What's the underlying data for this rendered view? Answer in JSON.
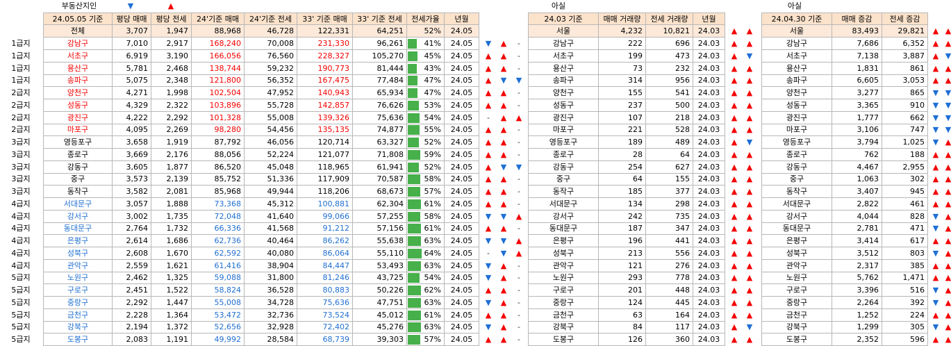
{
  "top_labels": {
    "source": "부동산지인",
    "down_marker": "▼",
    "up_marker": "▲",
    "asil1": "아실",
    "asil2": "아실"
  },
  "colors": {
    "header_bg": "#fbe2cb",
    "total_bg": "#fde9d9",
    "high_price": "#f40000",
    "low_price": "#1f6fd0",
    "bar": "#47b04b",
    "up": "#f40000",
    "down": "#1e6fd6"
  },
  "headers": {
    "left": [
      "24.05.05 기준",
      "평당 매매",
      "평당 전세",
      "24'기준 매매",
      "24'기준 전세",
      "33' 기준 매매",
      "33' 기준 전세",
      "전세가율",
      "년월"
    ],
    "mid": [
      "24.03 기준",
      "매매 거래량",
      "전세 거래량",
      "년월"
    ],
    "right": [
      "24.04.30 기준",
      "매매 증감",
      "전세 증감"
    ]
  },
  "totals": {
    "left": {
      "name": "전체",
      "p_sale": "3,707",
      "p_rent": "1,947",
      "s24": "88,968",
      "r24": "46,728",
      "s33": "122,331",
      "r33": "64,251",
      "ratio": "52%",
      "ym": "24.05"
    },
    "mid": {
      "name": "서울",
      "sale_vol": "4,232",
      "rent_vol": "10,821",
      "ym": "24.03",
      "a1": "up",
      "a2": "up"
    },
    "right": {
      "name": "서울",
      "sale_chg": "83,493",
      "rent_chg": "29,821",
      "a1": "up",
      "a2": "up"
    }
  },
  "rows": [
    {
      "grade": "1급지",
      "name": "강남구",
      "p_sale": "7,010",
      "p_rent": "2,917",
      "s24": "168,240",
      "r24": "70,008",
      "s33": "231,330",
      "r33": "96,261",
      "ratio": "41%",
      "rv": 41,
      "ym": "24.05",
      "cls": "red",
      "a": [
        "down",
        "up",
        "-"
      ],
      "m_name": "강남구",
      "m_sale": "222",
      "m_rent": "696",
      "m_ym": "24.03",
      "ma": [
        "up",
        "up"
      ],
      "r_name": "강남구",
      "r_sale": "7,686",
      "r_rent": "6,352",
      "ra": [
        "up",
        "up"
      ]
    },
    {
      "grade": "1급지",
      "name": "서초구",
      "p_sale": "6,919",
      "p_rent": "3,190",
      "s24": "166,056",
      "r24": "76,560",
      "s33": "228,327",
      "r33": "105,270",
      "ratio": "45%",
      "rv": 45,
      "ym": "24.05",
      "cls": "red",
      "a": [
        "up",
        "up",
        "-"
      ],
      "m_name": "서초구",
      "m_sale": "199",
      "m_rent": "473",
      "m_ym": "24.03",
      "ma": [
        "up",
        "down"
      ],
      "r_name": "서초구",
      "r_sale": "7,138",
      "r_rent": "3,887",
      "ra": [
        "up",
        "down"
      ]
    },
    {
      "grade": "1급지",
      "name": "용산구",
      "p_sale": "5,781",
      "p_rent": "2,468",
      "s24": "138,744",
      "r24": "59,232",
      "s33": "190,773",
      "r33": "81,444",
      "ratio": "43%",
      "rv": 43,
      "ym": "24.05",
      "cls": "red",
      "a": [
        "up",
        "up",
        "-"
      ],
      "m_name": "용산구",
      "m_sale": "73",
      "m_rent": "232",
      "m_ym": "24.03",
      "ma": [
        "up",
        "up"
      ],
      "r_name": "용산구",
      "r_sale": "1,831",
      "r_rent": "861",
      "ra": [
        "up",
        "up"
      ]
    },
    {
      "grade": "1급지",
      "name": "송파구",
      "p_sale": "5,075",
      "p_rent": "2,348",
      "s24": "121,800",
      "r24": "56,352",
      "s33": "167,475",
      "r33": "77,484",
      "ratio": "47%",
      "rv": 47,
      "ym": "24.05",
      "cls": "red",
      "a": [
        "up",
        "down",
        "down"
      ],
      "m_name": "송파구",
      "m_sale": "314",
      "m_rent": "956",
      "m_ym": "24.03",
      "ma": [
        "up",
        "up"
      ],
      "r_name": "송파구",
      "r_sale": "6,605",
      "r_rent": "3,053",
      "ra": [
        "up",
        "up"
      ]
    },
    {
      "grade": "2급지",
      "name": "양천구",
      "p_sale": "4,271",
      "p_rent": "1,998",
      "s24": "102,504",
      "r24": "47,952",
      "s33": "140,943",
      "r33": "65,934",
      "ratio": "47%",
      "rv": 47,
      "ym": "24.05",
      "cls": "red",
      "a": [
        "up",
        "up",
        "-"
      ],
      "m_name": "양천구",
      "m_sale": "155",
      "m_rent": "541",
      "m_ym": "24.03",
      "ma": [
        "up",
        "up"
      ],
      "r_name": "양천구",
      "r_sale": "3,277",
      "r_rent": "865",
      "ra": [
        "down",
        "down"
      ]
    },
    {
      "grade": "2급지",
      "name": "성동구",
      "p_sale": "4,329",
      "p_rent": "2,322",
      "s24": "103,896",
      "r24": "55,728",
      "s33": "142,857",
      "r33": "76,626",
      "ratio": "53%",
      "rv": 53,
      "ym": "24.05",
      "cls": "red",
      "a": [
        "up",
        "up",
        "-"
      ],
      "m_name": "성동구",
      "m_sale": "237",
      "m_rent": "500",
      "m_ym": "24.03",
      "ma": [
        "up",
        "up"
      ],
      "r_name": "성동구",
      "r_sale": "3,365",
      "r_rent": "910",
      "ra": [
        "down",
        "down"
      ]
    },
    {
      "grade": "2급지",
      "name": "광진구",
      "p_sale": "4,222",
      "p_rent": "2,292",
      "s24": "101,328",
      "r24": "55,008",
      "s33": "139,326",
      "r33": "75,636",
      "ratio": "54%",
      "rv": 54,
      "ym": "24.05",
      "cls": "red",
      "a": [
        "-",
        "up",
        "up"
      ],
      "m_name": "광진구",
      "m_sale": "107",
      "m_rent": "218",
      "m_ym": "24.03",
      "ma": [
        "up",
        "up"
      ],
      "r_name": "광진구",
      "r_sale": "1,777",
      "r_rent": "662",
      "ra": [
        "down",
        "down"
      ]
    },
    {
      "grade": "2급지",
      "name": "마포구",
      "p_sale": "4,095",
      "p_rent": "2,269",
      "s24": "98,280",
      "r24": "54,456",
      "s33": "135,135",
      "r33": "74,877",
      "ratio": "55%",
      "rv": 55,
      "ym": "24.05",
      "cls": "red",
      "a": [
        "up",
        "up",
        "-"
      ],
      "m_name": "마포구",
      "m_sale": "221",
      "m_rent": "528",
      "m_ym": "24.03",
      "ma": [
        "up",
        "up"
      ],
      "r_name": "마포구",
      "r_sale": "3,106",
      "r_rent": "747",
      "ra": [
        "down",
        "down"
      ]
    },
    {
      "grade": "3급지",
      "name": "영등포구",
      "p_sale": "3,658",
      "p_rent": "1,919",
      "s24": "87,792",
      "r24": "46,056",
      "s33": "120,714",
      "r33": "63,327",
      "ratio": "52%",
      "rv": 52,
      "ym": "24.05",
      "cls": "",
      "a": [
        "up",
        "up",
        "-"
      ],
      "m_name": "영등포구",
      "m_sale": "189",
      "m_rent": "489",
      "m_ym": "24.03",
      "ma": [
        "up",
        "down"
      ],
      "r_name": "영등포구",
      "r_sale": "3,794",
      "r_rent": "1,025",
      "ra": [
        "down",
        "up"
      ]
    },
    {
      "grade": "3급지",
      "name": "종로구",
      "p_sale": "3,669",
      "p_rent": "2,176",
      "s24": "88,056",
      "r24": "52,224",
      "s33": "121,077",
      "r33": "71,808",
      "ratio": "59%",
      "rv": 59,
      "ym": "24.05",
      "cls": "",
      "a": [
        "up",
        "up",
        "-"
      ],
      "m_name": "종로구",
      "m_sale": "28",
      "m_rent": "64",
      "m_ym": "24.03",
      "ma": [
        "up",
        "up"
      ],
      "r_name": "종로구",
      "r_sale": "762",
      "r_rent": "188",
      "ra": [
        "up",
        "up"
      ]
    },
    {
      "grade": "3급지",
      "name": "강동구",
      "p_sale": "3,605",
      "p_rent": "1,877",
      "s24": "86,520",
      "r24": "45,048",
      "s33": "118,965",
      "r33": "61,941",
      "ratio": "52%",
      "rv": 52,
      "ym": "24.05",
      "cls": "",
      "a": [
        "up",
        "down",
        "down"
      ],
      "m_name": "강동구",
      "m_sale": "254",
      "m_rent": "627",
      "m_ym": "24.03",
      "ma": [
        "up",
        "up"
      ],
      "r_name": "강동구",
      "r_sale": "4,467",
      "r_rent": "2,955",
      "ra": [
        "up",
        "up"
      ]
    },
    {
      "grade": "3급지",
      "name": "중구",
      "p_sale": "3,573",
      "p_rent": "2,139",
      "s24": "85,752",
      "r24": "51,336",
      "s33": "117,909",
      "r33": "70,587",
      "ratio": "58%",
      "rv": 58,
      "ym": "24.05",
      "cls": "",
      "a": [
        "up",
        "up",
        "-"
      ],
      "m_name": "중구",
      "m_sale": "64",
      "m_rent": "155",
      "m_ym": "24.03",
      "ma": [
        "up",
        "up"
      ],
      "r_name": "중구",
      "r_sale": "1,063",
      "r_rent": "302",
      "ra": [
        "up",
        "up"
      ]
    },
    {
      "grade": "3급지",
      "name": "동작구",
      "p_sale": "3,582",
      "p_rent": "2,081",
      "s24": "85,968",
      "r24": "49,944",
      "s33": "118,206",
      "r33": "68,673",
      "ratio": "57%",
      "rv": 57,
      "ym": "24.05",
      "cls": "",
      "a": [
        "up",
        "up",
        "-"
      ],
      "m_name": "동작구",
      "m_sale": "185",
      "m_rent": "377",
      "m_ym": "24.03",
      "ma": [
        "up",
        "up"
      ],
      "r_name": "동작구",
      "r_sale": "3,407",
      "r_rent": "945",
      "ra": [
        "up",
        "up"
      ]
    },
    {
      "grade": "4급지",
      "name": "서대문구",
      "p_sale": "3,057",
      "p_rent": "1,888",
      "s24": "73,368",
      "r24": "45,312",
      "s33": "100,881",
      "r33": "62,304",
      "ratio": "61%",
      "rv": 61,
      "ym": "24.05",
      "cls": "blue",
      "a": [
        "up",
        "up",
        "-"
      ],
      "m_name": "서대문구",
      "m_sale": "134",
      "m_rent": "298",
      "m_ym": "24.03",
      "ma": [
        "up",
        "up"
      ],
      "r_name": "서대문구",
      "r_sale": "2,822",
      "r_rent": "461",
      "ra": [
        "up",
        "up"
      ]
    },
    {
      "grade": "4급지",
      "name": "강서구",
      "p_sale": "3,002",
      "p_rent": "1,735",
      "s24": "72,048",
      "r24": "41,640",
      "s33": "99,066",
      "r33": "57,255",
      "ratio": "58%",
      "rv": 58,
      "ym": "24.05",
      "cls": "blue",
      "a": [
        "down",
        "down",
        "up"
      ],
      "m_name": "강서구",
      "m_sale": "242",
      "m_rent": "735",
      "m_ym": "24.03",
      "ma": [
        "up",
        "up"
      ],
      "r_name": "강서구",
      "r_sale": "4,044",
      "r_rent": "828",
      "ra": [
        "down",
        "up"
      ]
    },
    {
      "grade": "4급지",
      "name": "동대문구",
      "p_sale": "2,764",
      "p_rent": "1,732",
      "s24": "66,336",
      "r24": "41,568",
      "s33": "91,212",
      "r33": "57,156",
      "ratio": "61%",
      "rv": 61,
      "ym": "24.05",
      "cls": "blue",
      "a": [
        "up",
        "up",
        "-"
      ],
      "m_name": "동대문구",
      "m_sale": "187",
      "m_rent": "347",
      "m_ym": "24.03",
      "ma": [
        "up",
        "up"
      ],
      "r_name": "동대문구",
      "r_sale": "2,781",
      "r_rent": "471",
      "ra": [
        "down",
        "up"
      ]
    },
    {
      "grade": "4급지",
      "name": "은평구",
      "p_sale": "2,614",
      "p_rent": "1,686",
      "s24": "62,736",
      "r24": "40,464",
      "s33": "86,262",
      "r33": "55,638",
      "ratio": "63%",
      "rv": 63,
      "ym": "24.05",
      "cls": "blue",
      "a": [
        "down",
        "down",
        "up"
      ],
      "m_name": "은평구",
      "m_sale": "196",
      "m_rent": "441",
      "m_ym": "24.03",
      "ma": [
        "up",
        "up"
      ],
      "r_name": "은평구",
      "r_sale": "3,414",
      "r_rent": "617",
      "ra": [
        "up",
        "up"
      ]
    },
    {
      "grade": "4급지",
      "name": "성북구",
      "p_sale": "2,608",
      "p_rent": "1,670",
      "s24": "62,592",
      "r24": "40,080",
      "s33": "86,064",
      "r33": "55,110",
      "ratio": "64%",
      "rv": 64,
      "ym": "24.05",
      "cls": "blue",
      "a": [
        "-",
        "down",
        "up"
      ],
      "m_name": "성북구",
      "m_sale": "213",
      "m_rent": "556",
      "m_ym": "24.03",
      "ma": [
        "up",
        "up"
      ],
      "r_name": "성북구",
      "r_sale": "3,512",
      "r_rent": "803",
      "ra": [
        "down",
        "up"
      ]
    },
    {
      "grade": "4급지",
      "name": "관악구",
      "p_sale": "2,559",
      "p_rent": "1,621",
      "s24": "61,416",
      "r24": "38,904",
      "s33": "84,447",
      "r33": "53,493",
      "ratio": "63%",
      "rv": 63,
      "ym": "24.05",
      "cls": "blue",
      "a": [
        "down",
        "up",
        "-"
      ],
      "m_name": "관악구",
      "m_sale": "121",
      "m_rent": "276",
      "m_ym": "24.03",
      "ma": [
        "up",
        "up"
      ],
      "r_name": "관악구",
      "r_sale": "2,317",
      "r_rent": "385",
      "ra": [
        "up",
        "up"
      ]
    },
    {
      "grade": "5급지",
      "name": "노원구",
      "p_sale": "2,462",
      "p_rent": "1,325",
      "s24": "59,088",
      "r24": "31,800",
      "s33": "81,246",
      "r33": "43,725",
      "ratio": "54%",
      "rv": 54,
      "ym": "24.05",
      "cls": "blue",
      "a": [
        "down",
        "up",
        "-"
      ],
      "m_name": "노원구",
      "m_sale": "293",
      "m_rent": "778",
      "m_ym": "24.03",
      "ma": [
        "up",
        "up"
      ],
      "r_name": "노원구",
      "r_sale": "5,762",
      "r_rent": "1,471",
      "ra": [
        "up",
        "up"
      ]
    },
    {
      "grade": "5급지",
      "name": "구로구",
      "p_sale": "2,451",
      "p_rent": "1,522",
      "s24": "58,824",
      "r24": "36,528",
      "s33": "80,883",
      "r33": "50,226",
      "ratio": "62%",
      "rv": 62,
      "ym": "24.05",
      "cls": "blue",
      "a": [
        "up",
        "up",
        "-"
      ],
      "m_name": "구로구",
      "m_sale": "201",
      "m_rent": "448",
      "m_ym": "24.03",
      "ma": [
        "up",
        "up"
      ],
      "r_name": "구로구",
      "r_sale": "3,396",
      "r_rent": "516",
      "ra": [
        "down",
        "up"
      ]
    },
    {
      "grade": "5급지",
      "name": "중랑구",
      "p_sale": "2,292",
      "p_rent": "1,447",
      "s24": "55,008",
      "r24": "34,728",
      "s33": "75,636",
      "r33": "47,751",
      "ratio": "63%",
      "rv": 63,
      "ym": "24.05",
      "cls": "blue",
      "a": [
        "down",
        "up",
        "-"
      ],
      "m_name": "중랑구",
      "m_sale": "124",
      "m_rent": "445",
      "m_ym": "24.03",
      "ma": [
        "up",
        "up"
      ],
      "r_name": "중랑구",
      "r_sale": "2,264",
      "r_rent": "392",
      "ra": [
        "down",
        "up"
      ]
    },
    {
      "grade": "5급지",
      "name": "금천구",
      "p_sale": "2,228",
      "p_rent": "1,364",
      "s24": "53,472",
      "r24": "32,736",
      "s33": "73,524",
      "r33": "45,012",
      "ratio": "61%",
      "rv": 61,
      "ym": "24.05",
      "cls": "blue",
      "a": [
        "up",
        "up",
        "-"
      ],
      "m_name": "금천구",
      "m_sale": "63",
      "m_rent": "164",
      "m_ym": "24.03",
      "ma": [
        "up",
        "up"
      ],
      "r_name": "금천구",
      "r_sale": "1,252",
      "r_rent": "224",
      "ra": [
        "up",
        "up"
      ]
    },
    {
      "grade": "5급지",
      "name": "강북구",
      "p_sale": "2,194",
      "p_rent": "1,372",
      "s24": "52,656",
      "r24": "32,928",
      "s33": "72,402",
      "r33": "45,276",
      "ratio": "63%",
      "rv": 63,
      "ym": "24.05",
      "cls": "blue",
      "a": [
        "down",
        "up",
        "-"
      ],
      "m_name": "강북구",
      "m_sale": "84",
      "m_rent": "117",
      "m_ym": "24.03",
      "ma": [
        "up",
        "down"
      ],
      "r_name": "강북구",
      "r_sale": "1,299",
      "r_rent": "305",
      "ra": [
        "down",
        "up"
      ]
    },
    {
      "grade": "5급지",
      "name": "도봉구",
      "p_sale": "2,083",
      "p_rent": "1,191",
      "s24": "49,992",
      "r24": "28,584",
      "s33": "68,739",
      "r33": "39,303",
      "ratio": "57%",
      "rv": 57,
      "ym": "24.05",
      "cls": "blue",
      "a": [
        "up",
        "up",
        "-"
      ],
      "m_name": "도봉구",
      "m_sale": "126",
      "m_rent": "360",
      "m_ym": "24.03",
      "ma": [
        "up",
        "up"
      ],
      "r_name": "도봉구",
      "r_sale": "2,352",
      "r_rent": "596",
      "ra": [
        "up",
        "up"
      ]
    }
  ]
}
